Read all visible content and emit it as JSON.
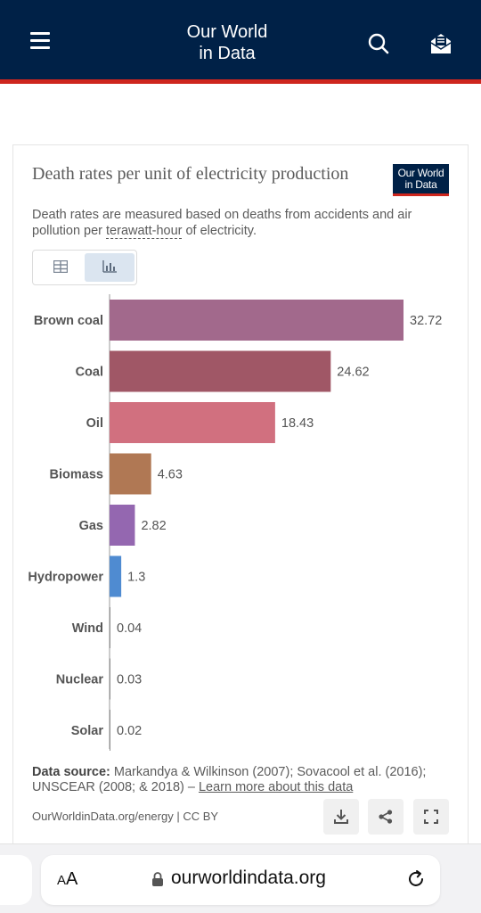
{
  "header": {
    "brand_line1": "Our World",
    "brand_line2": "in Data",
    "menu_icon": "hamburger-menu-icon",
    "search_icon": "search-icon",
    "subscribe_icon": "envelope-icon",
    "colors": {
      "background": "#002147",
      "accent": "#ce261e"
    }
  },
  "chart_data": {
    "type": "bar",
    "orientation": "horizontal",
    "title": "Death rates per unit of electricity production",
    "subtitle_pre": "Death rates are measured based on deaths from accidents and air pollution per ",
    "subtitle_term": "terawatt-hour",
    "subtitle_post": " of electricity.",
    "logo_line1": "Our World",
    "logo_line2": "in Data",
    "categories": [
      "Brown coal",
      "Coal",
      "Oil",
      "Biomass",
      "Gas",
      "Hydropower",
      "Wind",
      "Nuclear",
      "Solar"
    ],
    "values": [
      32.72,
      24.62,
      18.43,
      4.63,
      2.82,
      1.3,
      0.04,
      0.03,
      0.02
    ],
    "value_labels": [
      "32.72",
      "24.62",
      "18.43",
      "4.63",
      "2.82",
      "1.3",
      "0.04",
      "0.03",
      "0.02"
    ],
    "colors": [
      "#a2698c",
      "#a05766",
      "#d1707f",
      "#b07854",
      "#9467b0",
      "#4f8bd1",
      "#8e8e8e",
      "#8e8e8e",
      "#8e8e8e"
    ],
    "xlim": [
      0,
      32.72
    ],
    "grid": false,
    "legend": "none"
  },
  "view_toggle": {
    "table_icon": "table-icon",
    "chart_icon": "bar-chart-icon",
    "active": "chart"
  },
  "footer": {
    "source_label": "Data source:",
    "source_text": " Markandya & Wilkinson (2007); Sovacool et al. (2016); UNSCEAR (2008; & 2018) – ",
    "learn_more": "Learn more about this data",
    "credit": "OurWorldinData.org/energy | CC BY",
    "download_icon": "download-icon",
    "share_icon": "share-icon",
    "fullscreen_icon": "fullscreen-icon"
  },
  "browser": {
    "text_size_small": "A",
    "text_size_large": "A",
    "url": "ourworldindata.org",
    "lock_icon": "lock-icon",
    "reload_icon": "reload-icon"
  }
}
